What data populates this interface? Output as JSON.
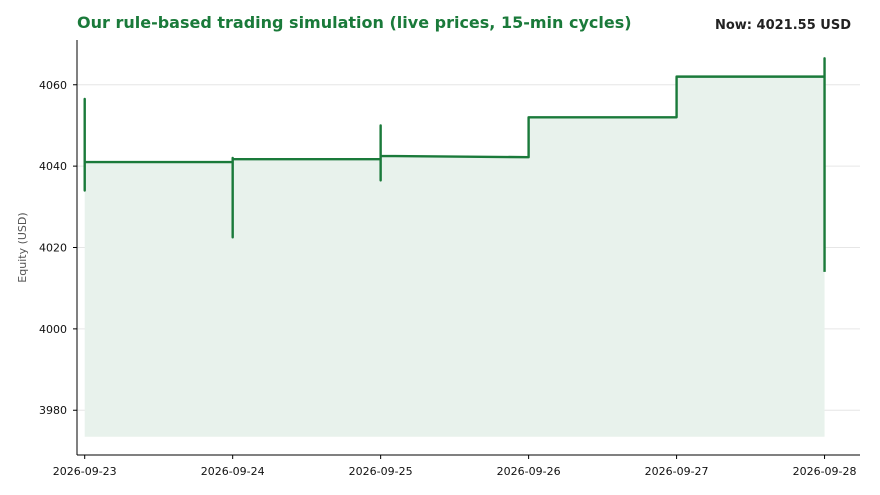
{
  "header": {
    "title": "Our rule-based trading simulation (live prices, 15-min cycles)",
    "now_label": "Now:",
    "now_value": "4021.55",
    "now_unit": "USD"
  },
  "colors": {
    "accent": "#1a7a3a",
    "fill": "#e8f2ec",
    "grid": "#e6e6e6"
  },
  "chart_data": {
    "type": "line",
    "title": "Our rule-based trading simulation (live prices, 15-min cycles)",
    "xlabel": "",
    "ylabel": "Equity (USD)",
    "xlim": [
      "2026-09-22T22:45",
      "2026-09-28T05:45"
    ],
    "ylim": [
      3969,
      4071
    ],
    "area_baseline": 3973.5,
    "grid": "horizontal",
    "x_ticks": [
      "2026-09-23",
      "2026-09-24",
      "2026-09-25",
      "2026-09-26",
      "2026-09-27",
      "2026-09-28"
    ],
    "y_ticks": [
      3980,
      4000,
      4020,
      4040,
      4060
    ],
    "series": [
      {
        "name": "",
        "points": [
          {
            "x": "2026-09-23T00:00",
            "y": 4041
          },
          {
            "x": "2026-09-23T00:00",
            "y": 4056.5
          },
          {
            "x": "2026-09-23T00:00",
            "y": 4034
          },
          {
            "x": "2026-09-23T00:00",
            "y": 4041
          },
          {
            "x": "2026-09-24T00:00",
            "y": 4041
          },
          {
            "x": "2026-09-24T00:00",
            "y": 4022.5
          },
          {
            "x": "2026-09-24T00:00",
            "y": 4042
          },
          {
            "x": "2026-09-24T00:00",
            "y": 4041.7
          },
          {
            "x": "2026-09-25T00:00",
            "y": 4041.7
          },
          {
            "x": "2026-09-25T00:00",
            "y": 4036.5
          },
          {
            "x": "2026-09-25T00:00",
            "y": 4050
          },
          {
            "x": "2026-09-25T00:00",
            "y": 4042.5
          },
          {
            "x": "2026-09-26T00:00",
            "y": 4042.2
          },
          {
            "x": "2026-09-26T00:00",
            "y": 4052
          },
          {
            "x": "2026-09-27T00:00",
            "y": 4052
          },
          {
            "x": "2026-09-27T00:00",
            "y": 4062
          },
          {
            "x": "2026-09-28T00:00",
            "y": 4062
          },
          {
            "x": "2026-09-28T00:00",
            "y": 4066.5
          },
          {
            "x": "2026-09-28T00:00",
            "y": 4014
          }
        ]
      }
    ]
  }
}
